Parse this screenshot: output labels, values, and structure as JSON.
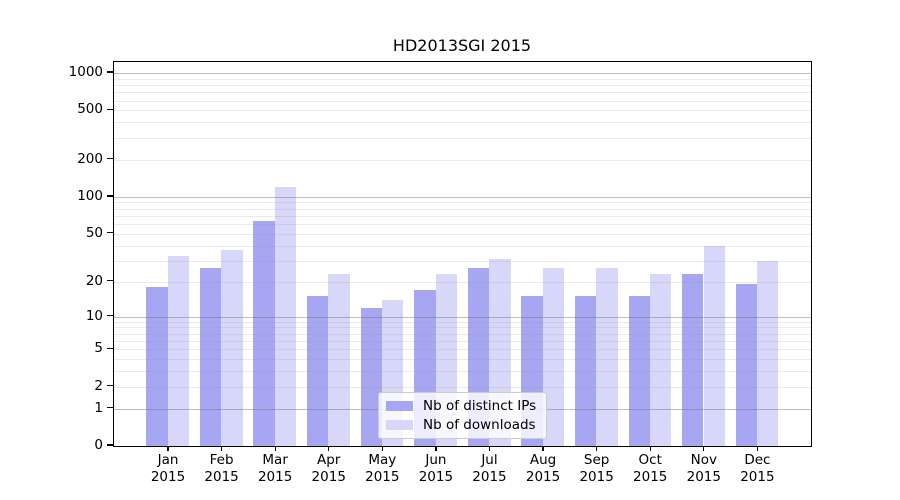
{
  "chart_data": {
    "type": "bar",
    "title": "HD2013SGI 2015",
    "categories": [
      "Jan\n2015",
      "Feb\n2015",
      "Mar\n2015",
      "Apr\n2015",
      "May\n2015",
      "Jun\n2015",
      "Jul\n2015",
      "Aug\n2015",
      "Sep\n2015",
      "Oct\n2015",
      "Nov\n2015",
      "Dec\n2015"
    ],
    "series": [
      {
        "name": "Nb of distinct IPs",
        "color": "#a6a6f2",
        "values": [
          18,
          26,
          64,
          15,
          12,
          17,
          26,
          15,
          15,
          15,
          23,
          19
        ]
      },
      {
        "name": "Nb of downloads",
        "color": "#d7d7f9",
        "values": [
          33,
          37,
          120,
          23,
          14,
          23,
          31,
          26,
          26,
          23,
          40,
          30
        ]
      }
    ],
    "yaxis": {
      "scale": "log1p",
      "tick_labels": [
        "0",
        "1",
        "2",
        "5",
        "10",
        "20",
        "50",
        "100",
        "200",
        "500",
        "1000"
      ],
      "tick_values": [
        0,
        1,
        2,
        5,
        10,
        20,
        50,
        100,
        200,
        500,
        1000
      ],
      "major_grid_values": [
        1,
        10,
        100,
        1000
      ],
      "minor_grid_values": [
        2,
        3,
        4,
        5,
        6,
        7,
        8,
        9,
        20,
        30,
        40,
        50,
        60,
        70,
        80,
        90,
        200,
        300,
        400,
        500,
        600,
        700,
        800,
        900
      ],
      "ylim": [
        0,
        1230
      ]
    },
    "legend_position": "lower center",
    "grid": true
  },
  "colors": {
    "major_grid": "rgba(110,110,110,0.45)",
    "minor_grid": "rgba(150,150,150,0.20)",
    "axis": "#000000",
    "background": "#ffffff"
  }
}
